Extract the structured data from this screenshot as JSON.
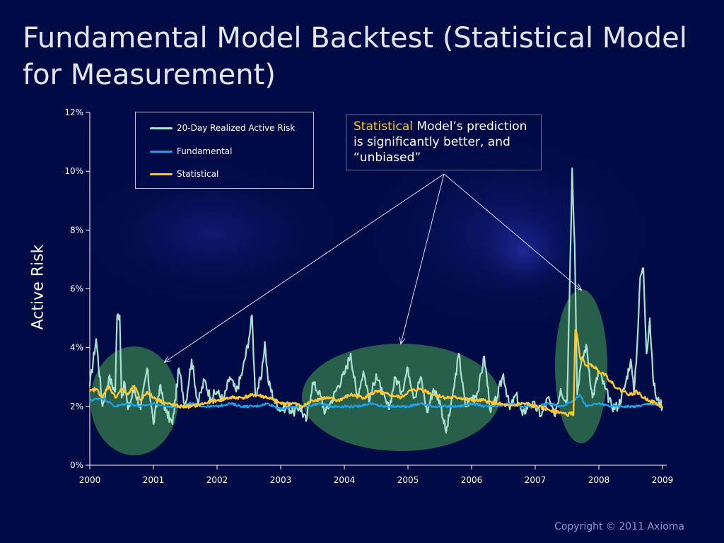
{
  "title": "Fundamental Model Backtest (Statistical Model for Measurement)",
  "footer": "Copyright © 2011 Axioma",
  "callout": {
    "highlight": "Statistical",
    "text": " Model’s prediction is significantly better, and “unbiased”",
    "highlight_color": "#ffc72c"
  },
  "chart_data": {
    "type": "line",
    "ylabel": "Active Risk",
    "xlabel": "",
    "x_ticks": [
      "2000",
      "2001",
      "2002",
      "2003",
      "2004",
      "2005",
      "2006",
      "2007",
      "2008",
      "2009"
    ],
    "y_ticks": [
      "0%",
      "2%",
      "4%",
      "6%",
      "8%",
      "10%",
      "12%"
    ],
    "xlim": [
      2000,
      2009.1
    ],
    "ylim": [
      0,
      12
    ],
    "legend_position": "top-left",
    "colors": {
      "realized": "#a9e2d3",
      "fundamental": "#1fa3e6",
      "statistical": "#ffc72c",
      "axis": "#ffffff",
      "highlight_ellipse": "#2f6e4c",
      "arrow": "#d8dcf0"
    },
    "series": [
      {
        "name": "20-Day Realized Active Risk",
        "key": "realized",
        "x": [
          2000.0,
          2000.1,
          2000.2,
          2000.3,
          2000.4,
          2000.43,
          2000.47,
          2000.5,
          2000.55,
          2000.6,
          2000.7,
          2000.8,
          2000.9,
          2001.0,
          2001.1,
          2001.2,
          2001.3,
          2001.4,
          2001.5,
          2001.6,
          2001.7,
          2001.8,
          2001.9,
          2002.0,
          2002.1,
          2002.2,
          2002.3,
          2002.4,
          2002.5,
          2002.55,
          2002.6,
          2002.7,
          2002.75,
          2002.8,
          2002.9,
          2003.0,
          2003.1,
          2003.2,
          2003.3,
          2003.4,
          2003.5,
          2003.6,
          2003.7,
          2003.8,
          2003.9,
          2004.0,
          2004.1,
          2004.2,
          2004.3,
          2004.4,
          2004.5,
          2004.6,
          2004.7,
          2004.8,
          2004.9,
          2005.0,
          2005.1,
          2005.2,
          2005.3,
          2005.4,
          2005.5,
          2005.6,
          2005.7,
          2005.8,
          2005.9,
          2006.0,
          2006.1,
          2006.2,
          2006.3,
          2006.4,
          2006.5,
          2006.6,
          2006.7,
          2006.8,
          2006.9,
          2007.0,
          2007.1,
          2007.2,
          2007.3,
          2007.4,
          2007.5,
          2007.55,
          2007.58,
          2007.62,
          2007.66,
          2007.7,
          2007.8,
          2007.9,
          2008.0,
          2008.1,
          2008.2,
          2008.3,
          2008.4,
          2008.5,
          2008.55,
          2008.6,
          2008.65,
          2008.7,
          2008.75,
          2008.8,
          2008.85,
          2008.9,
          2009.0
        ],
        "values": [
          2.7,
          4.3,
          2.0,
          3.0,
          2.5,
          5.1,
          5.1,
          2.3,
          2.8,
          1.9,
          2.6,
          1.9,
          3.3,
          1.4,
          2.7,
          1.8,
          1.4,
          3.3,
          2.0,
          3.6,
          2.1,
          2.9,
          2.3,
          2.5,
          2.2,
          3.0,
          2.5,
          3.2,
          4.3,
          5.1,
          2.4,
          3.0,
          4.2,
          2.9,
          2.2,
          1.9,
          2.0,
          1.8,
          2.0,
          1.5,
          2.8,
          2.5,
          1.8,
          2.2,
          2.7,
          3.1,
          3.8,
          2.3,
          3.2,
          2.2,
          3.1,
          2.4,
          1.9,
          3.0,
          2.5,
          3.3,
          2.3,
          3.0,
          1.8,
          2.6,
          2.2,
          1.1,
          2.3,
          3.8,
          2.0,
          2.3,
          2.5,
          3.7,
          1.8,
          2.3,
          3.1,
          1.9,
          2.4,
          1.7,
          2.1,
          2.0,
          1.7,
          2.3,
          1.7,
          2.6,
          2.1,
          7.0,
          10.1,
          7.5,
          2.4,
          3.2,
          4.1,
          2.3,
          3.2,
          2.6,
          2.0,
          2.0,
          2.6,
          3.6,
          2.5,
          4.0,
          6.4,
          6.7,
          3.8,
          5.0,
          3.0,
          2.3,
          2.0
        ]
      },
      {
        "name": "Fundamental",
        "key": "fundamental",
        "x": [
          2000.0,
          2000.2,
          2000.4,
          2000.6,
          2000.8,
          2001.0,
          2001.2,
          2001.4,
          2001.6,
          2001.8,
          2002.0,
          2002.2,
          2002.4,
          2002.6,
          2002.8,
          2003.0,
          2003.2,
          2003.4,
          2003.6,
          2003.8,
          2004.0,
          2004.2,
          2004.4,
          2004.6,
          2004.8,
          2005.0,
          2005.2,
          2005.4,
          2005.6,
          2005.8,
          2006.0,
          2006.2,
          2006.4,
          2006.6,
          2006.8,
          2007.0,
          2007.2,
          2007.4,
          2007.6,
          2007.7,
          2007.8,
          2008.0,
          2008.2,
          2008.4,
          2008.6,
          2008.8,
          2009.0
        ],
        "values": [
          2.2,
          2.3,
          2.0,
          2.1,
          2.0,
          2.1,
          2.0,
          2.0,
          2.1,
          2.0,
          2.0,
          2.1,
          2.0,
          2.0,
          2.1,
          1.9,
          2.0,
          2.0,
          2.1,
          2.0,
          2.0,
          2.0,
          2.1,
          2.0,
          2.0,
          2.0,
          2.1,
          2.0,
          2.0,
          2.0,
          2.1,
          2.0,
          2.0,
          2.1,
          2.0,
          2.0,
          2.1,
          2.0,
          2.2,
          2.4,
          2.0,
          2.1,
          2.0,
          2.0,
          2.0,
          2.1,
          2.0
        ]
      },
      {
        "name": "Statistical",
        "key": "statistical",
        "x": [
          2000.0,
          2000.1,
          2000.2,
          2000.3,
          2000.4,
          2000.5,
          2000.6,
          2000.7,
          2000.8,
          2000.9,
          2001.0,
          2001.2,
          2001.4,
          2001.6,
          2001.8,
          2002.0,
          2002.2,
          2002.4,
          2002.6,
          2002.8,
          2003.0,
          2003.2,
          2003.35,
          2003.5,
          2003.7,
          2003.9,
          2004.1,
          2004.3,
          2004.5,
          2004.7,
          2004.9,
          2005.0,
          2005.2,
          2005.4,
          2005.6,
          2005.8,
          2006.0,
          2006.2,
          2006.4,
          2006.6,
          2006.8,
          2007.0,
          2007.2,
          2007.4,
          2007.5,
          2007.55,
          2007.6,
          2007.63,
          2007.66,
          2007.7,
          2007.8,
          2007.9,
          2008.0,
          2008.1,
          2008.2,
          2008.3,
          2008.4,
          2008.5,
          2008.6,
          2008.7,
          2008.8,
          2008.9,
          2009.0
        ],
        "values": [
          2.5,
          2.6,
          2.3,
          2.7,
          2.3,
          2.6,
          2.4,
          2.7,
          2.2,
          2.5,
          2.3,
          2.1,
          2.0,
          2.0,
          2.1,
          2.2,
          2.3,
          2.3,
          2.4,
          2.3,
          2.1,
          2.1,
          2.0,
          2.2,
          2.3,
          2.2,
          2.4,
          2.3,
          2.5,
          2.4,
          2.3,
          2.5,
          2.6,
          2.4,
          2.3,
          2.3,
          2.2,
          2.2,
          2.1,
          2.0,
          2.1,
          2.0,
          1.9,
          1.8,
          1.7,
          1.8,
          1.7,
          4.6,
          4.4,
          3.7,
          3.4,
          3.4,
          3.2,
          3.1,
          2.8,
          2.6,
          2.5,
          2.4,
          2.5,
          2.3,
          2.2,
          2.1,
          2.0
        ]
      }
    ]
  }
}
